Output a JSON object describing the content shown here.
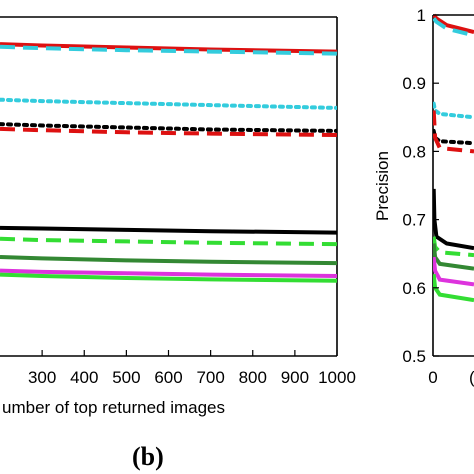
{
  "chart_data": [
    {
      "type": "line",
      "panel_label": "(b)",
      "xlabel": "umber of top returned images",
      "ylabel": "",
      "x_ticks": [
        "300",
        "400",
        "500",
        "600",
        "700",
        "800",
        "900",
        "1000"
      ],
      "xlim": [
        200,
        1000
      ],
      "ylim": [
        0.5,
        1.0
      ],
      "grid": false,
      "series": [
        {
          "color": "#dd1111",
          "dash": "solid",
          "width": 4,
          "x": [
            200,
            300,
            500,
            700,
            1000
          ],
          "y": [
            0.96,
            0.958,
            0.955,
            0.952,
            0.949
          ]
        },
        {
          "color": "#33ccdd",
          "dash": "longdash",
          "width": 4,
          "x": [
            200,
            300,
            500,
            700,
            1000
          ],
          "y": [
            0.956,
            0.954,
            0.951,
            0.949,
            0.946
          ]
        },
        {
          "color": "#33ccdd",
          "dash": "dot",
          "width": 4,
          "x": [
            200,
            300,
            500,
            700,
            1000
          ],
          "y": [
            0.878,
            0.876,
            0.873,
            0.87,
            0.866
          ]
        },
        {
          "color": "#000000",
          "dash": "dot",
          "width": 4,
          "x": [
            200,
            300,
            500,
            700,
            1000
          ],
          "y": [
            0.842,
            0.84,
            0.837,
            0.834,
            0.832
          ]
        },
        {
          "color": "#dd1111",
          "dash": "longdash",
          "width": 4,
          "x": [
            200,
            300,
            500,
            700,
            1000
          ],
          "y": [
            0.835,
            0.833,
            0.83,
            0.828,
            0.826
          ]
        },
        {
          "color": "#000000",
          "dash": "solid",
          "width": 4,
          "x": [
            200,
            300,
            500,
            700,
            1000
          ],
          "y": [
            0.689,
            0.688,
            0.686,
            0.684,
            0.682
          ]
        },
        {
          "color": "#33dd33",
          "dash": "longdash",
          "width": 4,
          "x": [
            200,
            300,
            500,
            700,
            1000
          ],
          "y": [
            0.673,
            0.671,
            0.669,
            0.667,
            0.665
          ]
        },
        {
          "color": "#338833",
          "dash": "solid",
          "width": 4,
          "x": [
            200,
            300,
            500,
            700,
            1000
          ],
          "y": [
            0.646,
            0.644,
            0.641,
            0.639,
            0.637
          ]
        },
        {
          "color": "#dd33dd",
          "dash": "solid",
          "width": 4,
          "x": [
            200,
            300,
            500,
            700,
            1000
          ],
          "y": [
            0.626,
            0.624,
            0.622,
            0.62,
            0.618
          ]
        },
        {
          "color": "#33dd33",
          "dash": "solid",
          "width": 4,
          "x": [
            200,
            300,
            500,
            700,
            1000
          ],
          "y": [
            0.62,
            0.618,
            0.615,
            0.613,
            0.611
          ]
        }
      ]
    },
    {
      "type": "line",
      "xlabel": "",
      "ylabel": "Precision",
      "y_ticks": [
        "0.5",
        "0.6",
        "0.7",
        "0.8",
        "0.9",
        "1"
      ],
      "x_ticks": [
        "0",
        "("
      ],
      "xlim": [
        0,
        60
      ],
      "ylim": [
        0.5,
        1.0
      ],
      "grid": false,
      "series": [
        {
          "color": "#dd1111",
          "dash": "solid",
          "width": 4,
          "x": [
            1,
            5,
            20,
            60
          ],
          "y": [
            1.0,
            0.995,
            0.985,
            0.975
          ]
        },
        {
          "color": "#33ccdd",
          "dash": "longdash",
          "width": 4,
          "x": [
            1,
            5,
            20,
            60
          ],
          "y": [
            0.995,
            0.99,
            0.98,
            0.97
          ]
        },
        {
          "color": "#33ccdd",
          "dash": "dot",
          "width": 4,
          "x": [
            1,
            3,
            10,
            60
          ],
          "y": [
            0.87,
            0.86,
            0.855,
            0.85
          ]
        },
        {
          "color": "#000000",
          "dash": "dot",
          "width": 4,
          "x": [
            1,
            3,
            10,
            60
          ],
          "y": [
            0.83,
            0.82,
            0.815,
            0.812
          ]
        },
        {
          "color": "#dd1111",
          "dash": "longdash",
          "width": 4,
          "x": [
            1,
            3,
            10,
            60
          ],
          "y": [
            0.86,
            0.82,
            0.805,
            0.8
          ]
        },
        {
          "color": "#000000",
          "dash": "solid",
          "width": 4,
          "x": [
            1,
            2,
            5,
            20,
            60
          ],
          "y": [
            0.745,
            0.7,
            0.675,
            0.665,
            0.658
          ]
        },
        {
          "color": "#33dd33",
          "dash": "longdash",
          "width": 4,
          "x": [
            1,
            3,
            10,
            60
          ],
          "y": [
            0.675,
            0.66,
            0.652,
            0.648
          ]
        },
        {
          "color": "#338833",
          "dash": "solid",
          "width": 4,
          "x": [
            1,
            3,
            10,
            60
          ],
          "y": [
            0.665,
            0.645,
            0.635,
            0.628
          ]
        },
        {
          "color": "#dd33dd",
          "dash": "solid",
          "width": 4,
          "x": [
            1,
            3,
            10,
            60
          ],
          "y": [
            0.645,
            0.625,
            0.612,
            0.605
          ]
        },
        {
          "color": "#33dd33",
          "dash": "solid",
          "width": 4,
          "x": [
            1,
            3,
            10,
            60
          ],
          "y": [
            0.62,
            0.6,
            0.59,
            0.582
          ]
        }
      ]
    }
  ]
}
